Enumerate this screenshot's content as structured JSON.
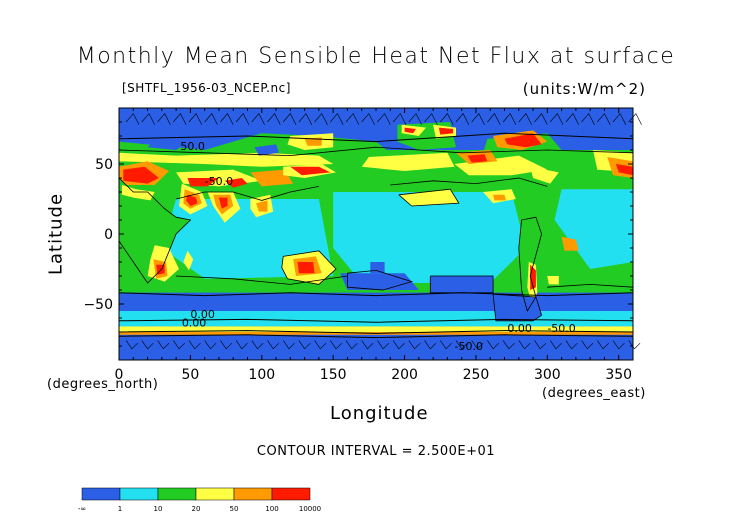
{
  "title": "Monthly Mean Sensible Heat Net Flux at surface",
  "file_label": "[SHTFL_1956-03_NCEP.nc]",
  "units_label": "(units:W/m^2)",
  "contour_interval": "CONTOUR INTERVAL = 2.500E+01",
  "chart_data": {
    "type": "heatmap",
    "title": "Monthly Mean Sensible Heat Net Flux at surface",
    "xlabel": "Longitude",
    "ylabel": "Latitude",
    "x_unit_label": "(degrees_east)",
    "y_unit_label": "(degrees_north)",
    "xlim": [
      0,
      360
    ],
    "ylim": [
      -90,
      90
    ],
    "x_ticks": [
      0,
      50,
      100,
      150,
      200,
      250,
      300,
      350
    ],
    "y_ticks": [
      50,
      0,
      -50
    ],
    "colorbar": {
      "levels": [
        "-∞",
        "1",
        "10",
        "20",
        "50",
        "100",
        "10000"
      ],
      "colors": [
        "#2a5fe6",
        "#22e0f0",
        "#22cc22",
        "#ffff44",
        "#ff9a00",
        "#ff1a00"
      ]
    },
    "contour_labels": [
      "50.0",
      "-50.0",
      "0.00",
      "0.00",
      "-50.0",
      "0.00",
      "-50.0"
    ]
  }
}
